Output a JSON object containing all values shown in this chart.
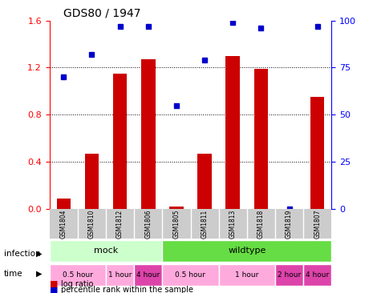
{
  "title": "GDS80 / 1947",
  "samples": [
    "GSM1804",
    "GSM1810",
    "GSM1812",
    "GSM1806",
    "GSM1805",
    "GSM1811",
    "GSM1813",
    "GSM1818",
    "GSM1819",
    "GSM1807"
  ],
  "log_ratio": [
    0.09,
    0.47,
    1.15,
    1.27,
    0.02,
    0.47,
    1.3,
    1.19,
    0.0,
    0.95
  ],
  "percentile": [
    70,
    82,
    97,
    97,
    55,
    79,
    99,
    96,
    0,
    97
  ],
  "ylim_left": [
    0,
    1.6
  ],
  "ylim_right": [
    0,
    100
  ],
  "yticks_left": [
    0,
    0.4,
    0.8,
    1.2,
    1.6
  ],
  "yticks_right": [
    0,
    25,
    50,
    75,
    100
  ],
  "bar_color": "#cc0000",
  "dot_color": "#0000cc",
  "infection_mock_color": "#ccffcc",
  "infection_wildtype_color": "#66dd44",
  "time_light_color": "#ffaadd",
  "time_dark_color": "#dd44aa",
  "sample_bg_color": "#cccccc",
  "infection_groups": [
    {
      "label": "mock",
      "start": 0,
      "end": 4
    },
    {
      "label": "wildtype",
      "start": 4,
      "end": 10
    }
  ],
  "time_groups": [
    {
      "label": "0.5 hour",
      "start": 0,
      "end": 2,
      "dark": false
    },
    {
      "label": "1 hour",
      "start": 2,
      "end": 3,
      "dark": false
    },
    {
      "label": "4 hour",
      "start": 3,
      "end": 4,
      "dark": true
    },
    {
      "label": "0.5 hour",
      "start": 4,
      "end": 6,
      "dark": false
    },
    {
      "label": "1 hour",
      "start": 6,
      "end": 8,
      "dark": false
    },
    {
      "label": "2 hour",
      "start": 8,
      "end": 9,
      "dark": true
    },
    {
      "label": "4 hour",
      "start": 9,
      "end": 10,
      "dark": true
    }
  ]
}
